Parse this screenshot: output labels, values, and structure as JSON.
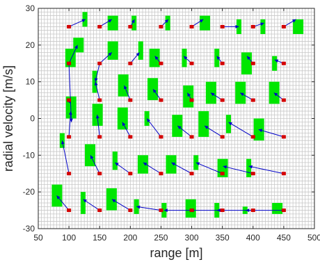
{
  "chart_data": {
    "type": "scatter",
    "title": "",
    "xlabel": "range [m]",
    "ylabel": "radial velocity [m/s]",
    "xlim": [
      50,
      500
    ],
    "ylim": [
      -30,
      30
    ],
    "xticks": [
      50,
      100,
      150,
      200,
      250,
      300,
      350,
      400,
      450,
      500
    ],
    "yticks": [
      -30,
      -20,
      -10,
      0,
      10,
      20,
      30
    ],
    "minor_grid": {
      "x_step": 5,
      "y_step": 1
    },
    "colors": {
      "target": "#d40000",
      "cell": "#00e600",
      "arrow": "#0000c8",
      "grid": "#c8c8c8",
      "axis": "#262626"
    },
    "series": [
      {
        "type": "points",
        "marker": "square",
        "points": [
          [
            100,
            25
          ],
          [
            150,
            25
          ],
          [
            200,
            25
          ],
          [
            250,
            25
          ],
          [
            300,
            25
          ],
          [
            350,
            25
          ],
          [
            400,
            25
          ],
          [
            450,
            25
          ],
          [
            100,
            15
          ],
          [
            150,
            15
          ],
          [
            200,
            15
          ],
          [
            250,
            15
          ],
          [
            300,
            15
          ],
          [
            350,
            15
          ],
          [
            400,
            15
          ],
          [
            450,
            15
          ],
          [
            100,
            5
          ],
          [
            150,
            5
          ],
          [
            200,
            5
          ],
          [
            250,
            5
          ],
          [
            300,
            5
          ],
          [
            350,
            5
          ],
          [
            400,
            5
          ],
          [
            450,
            5
          ],
          [
            100,
            -5
          ],
          [
            150,
            -5
          ],
          [
            200,
            -5
          ],
          [
            250,
            -5
          ],
          [
            300,
            -5
          ],
          [
            350,
            -5
          ],
          [
            400,
            -5
          ],
          [
            450,
            -5
          ],
          [
            100,
            -15
          ],
          [
            150,
            -15
          ],
          [
            200,
            -15
          ],
          [
            250,
            -15
          ],
          [
            300,
            -15
          ],
          [
            350,
            -15
          ],
          [
            400,
            -15
          ],
          [
            450,
            -15
          ],
          [
            100,
            -25
          ],
          [
            150,
            -25
          ],
          [
            200,
            -25
          ],
          [
            250,
            -25
          ],
          [
            300,
            -25
          ],
          [
            350,
            -25
          ],
          [
            400,
            -25
          ],
          [
            450,
            -25
          ]
        ]
      },
      {
        "type": "rect-cells",
        "cells": [
          [
            122,
            130,
            25,
            29
          ],
          [
            163,
            180,
            24,
            28
          ],
          [
            202,
            210,
            24,
            28
          ],
          [
            257,
            265,
            24,
            28
          ],
          [
            313,
            330,
            24,
            28
          ],
          [
            373,
            381,
            23,
            27
          ],
          [
            412,
            420,
            23,
            27
          ],
          [
            465,
            482,
            23,
            27
          ],
          [
            107,
            124,
            18,
            22
          ],
          [
            163,
            180,
            16,
            21
          ],
          [
            213,
            221,
            16,
            21
          ],
          [
            231,
            248,
            14,
            19
          ],
          [
            284,
            292,
            14,
            19
          ],
          [
            337,
            345,
            14,
            19
          ],
          [
            381,
            398,
            12,
            18
          ],
          [
            431,
            439,
            13,
            17
          ],
          [
            94,
            111,
            14,
            19
          ],
          [
            95,
            112,
            0,
            6
          ],
          [
            138,
            146,
            7,
            13
          ],
          [
            180,
            197,
            6,
            12
          ],
          [
            228,
            245,
            5,
            11
          ],
          [
            286,
            303,
            3,
            9
          ],
          [
            323,
            340,
            4,
            10
          ],
          [
            371,
            388,
            4,
            10
          ],
          [
            426,
            443,
            4,
            10
          ],
          [
            138,
            155,
            -2,
            4
          ],
          [
            179,
            196,
            -3,
            3
          ],
          [
            223,
            231,
            -2,
            2
          ],
          [
            268,
            285,
            -5,
            1
          ],
          [
            311,
            328,
            -5,
            2
          ],
          [
            356,
            364,
            -4,
            1
          ],
          [
            401,
            418,
            -6,
            0
          ],
          [
            85,
            93,
            -8,
            -4
          ],
          [
            126,
            143,
            -13,
            -7
          ],
          [
            171,
            179,
            -14,
            -9
          ],
          [
            212,
            229,
            -15,
            -10
          ],
          [
            258,
            275,
            -15,
            -10
          ],
          [
            303,
            311,
            -14,
            -10
          ],
          [
            342,
            359,
            -16,
            -11
          ],
          [
            389,
            397,
            -16,
            -11
          ],
          [
            72,
            89,
            -24,
            -18
          ],
          [
            119,
            127,
            -26,
            -20
          ],
          [
            161,
            178,
            -25,
            -19
          ],
          [
            206,
            214,
            -26,
            -22
          ],
          [
            251,
            259,
            -27,
            -23
          ],
          [
            290,
            307,
            -27,
            -22
          ],
          [
            337,
            345,
            -27,
            -23
          ],
          [
            383,
            391,
            -26,
            -24
          ],
          [
            431,
            448,
            -26,
            -23
          ]
        ]
      },
      {
        "type": "arrows",
        "segments": [
          [
            100,
            25,
            127,
            27
          ],
          [
            150,
            25,
            170,
            27
          ],
          [
            200,
            25,
            207,
            27
          ],
          [
            250,
            25,
            262,
            27
          ],
          [
            300,
            25,
            319,
            27
          ],
          [
            350,
            25,
            377,
            25
          ],
          [
            400,
            25,
            418,
            26
          ],
          [
            450,
            25,
            470,
            27
          ],
          [
            100,
            15,
            114,
            20
          ],
          [
            150,
            15,
            170,
            18
          ],
          [
            200,
            15,
            215,
            18
          ],
          [
            250,
            15,
            240,
            17
          ],
          [
            300,
            15,
            287,
            17
          ],
          [
            350,
            15,
            341,
            17
          ],
          [
            400,
            15,
            390,
            17
          ],
          [
            450,
            15,
            435,
            16
          ],
          [
            150,
            15,
            143,
            10
          ],
          [
            150,
            5,
            143,
            10
          ],
          [
            200,
            5,
            190,
            9
          ],
          [
            250,
            5,
            237,
            8
          ],
          [
            300,
            5,
            293,
            7
          ],
          [
            350,
            5,
            331,
            7
          ],
          [
            400,
            5,
            379,
            7
          ],
          [
            450,
            5,
            434,
            7
          ],
          [
            100,
            5,
            103,
            4
          ],
          [
            100,
            -5,
            103,
            2
          ],
          [
            100,
            15,
            104,
            -1
          ],
          [
            150,
            -5,
            146,
            1
          ],
          [
            200,
            -5,
            187,
            -1
          ],
          [
            250,
            -5,
            227,
            0
          ],
          [
            300,
            -5,
            277,
            -2
          ],
          [
            350,
            -5,
            321,
            -2
          ],
          [
            400,
            -5,
            360,
            -1
          ],
          [
            450,
            -5,
            409,
            -3
          ],
          [
            100,
            -15,
            89,
            -6
          ],
          [
            150,
            -15,
            135,
            -10
          ],
          [
            200,
            -15,
            175,
            -12
          ],
          [
            250,
            -15,
            221,
            -12
          ],
          [
            300,
            -15,
            267,
            -12
          ],
          [
            350,
            -15,
            307,
            -12
          ],
          [
            400,
            -15,
            351,
            -13
          ],
          [
            450,
            -15,
            393,
            -13
          ],
          [
            100,
            -25,
            80,
            -21
          ],
          [
            150,
            -25,
            123,
            -22
          ],
          [
            200,
            -25,
            170,
            -22
          ],
          [
            250,
            -25,
            210,
            -24
          ],
          [
            300,
            -25,
            255,
            -25
          ],
          [
            350,
            -25,
            298,
            -25
          ],
          [
            400,
            -25,
            341,
            -25
          ],
          [
            450,
            -25,
            388,
            -25
          ]
        ]
      }
    ]
  }
}
